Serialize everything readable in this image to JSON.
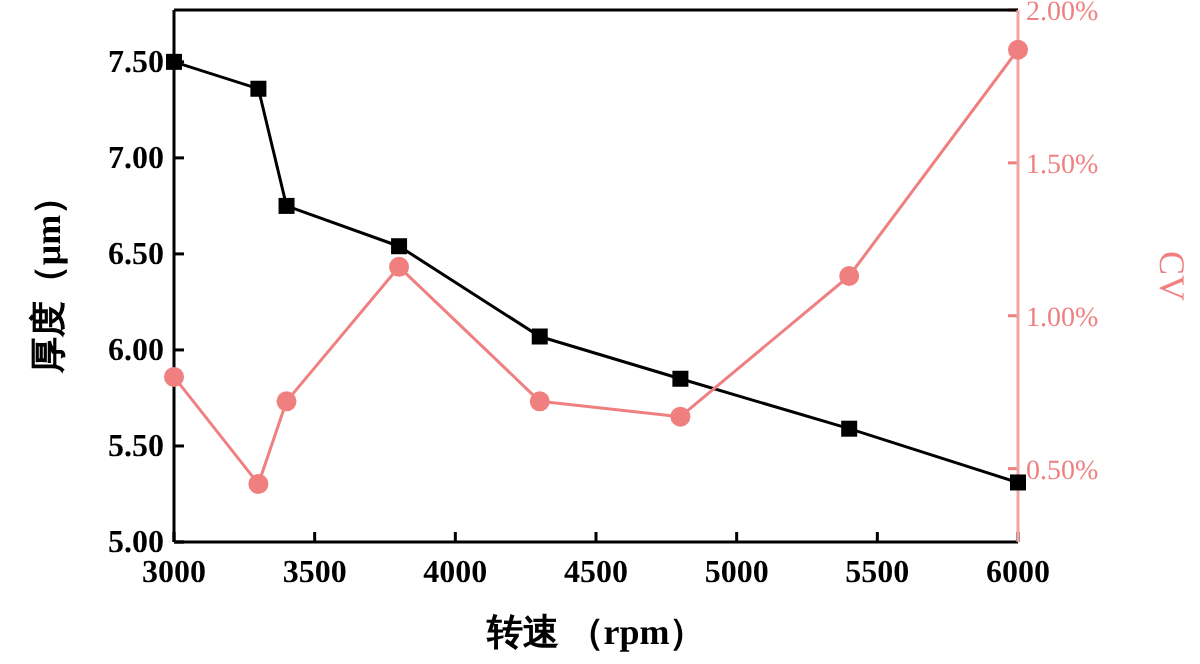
{
  "chart_data": {
    "type": "line",
    "xlabel": "转速 （rpm）",
    "ylabel": "厚度（μm）",
    "y2label": "CV",
    "x": [
      3000,
      3300,
      3400,
      3800,
      4300,
      4800,
      5400,
      6000
    ],
    "series": [
      {
        "color": "#000000",
        "marker": "square",
        "values": [
          7.5,
          7.36,
          6.75,
          6.54,
          6.07,
          5.85,
          5.59,
          5.31
        ]
      },
      {
        "color": "#f08080",
        "marker": "circle",
        "axis": "y2",
        "values": [
          0.8,
          0.45,
          0.72,
          1.16,
          0.72,
          0.67,
          1.13,
          1.87
        ]
      }
    ],
    "xlim": [
      3000,
      6000
    ],
    "xticks": [
      3000,
      3500,
      4000,
      4500,
      5000,
      5500,
      6000
    ],
    "ylim": [
      5.0,
      7.77
    ],
    "yticks": [
      {
        "value": 5.0,
        "label": "5.00"
      },
      {
        "value": 5.5,
        "label": "5.50"
      },
      {
        "value": 6.0,
        "label": "6.00"
      },
      {
        "value": 6.5,
        "label": "6.50"
      },
      {
        "value": 7.0,
        "label": "7.00"
      },
      {
        "value": 7.5,
        "label": "7.50"
      }
    ],
    "y2lim": [
      0.26,
      2.0
    ],
    "y2ticks": [
      {
        "value": 0.5,
        "label": "0.50%"
      },
      {
        "value": 1.0,
        "label": "1.00%"
      },
      {
        "value": 1.5,
        "label": "1.50%"
      },
      {
        "value": 2.0,
        "label": "2.00%"
      }
    ],
    "grid": false
  }
}
